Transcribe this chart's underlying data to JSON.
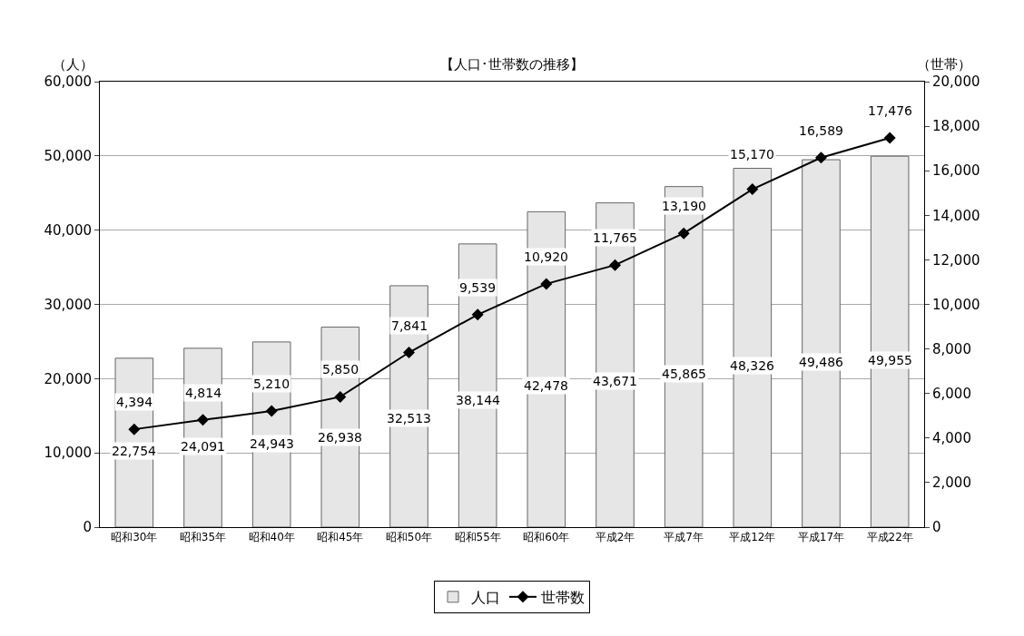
{
  "chart_data": {
    "type": "bar",
    "title": "【人口･世帯数の推移】",
    "ylabel": "（人）",
    "y2label": "（世帯）",
    "categories": [
      "昭和30年",
      "昭和35年",
      "昭和40年",
      "昭和45年",
      "昭和50年",
      "昭和55年",
      "昭和60年",
      "平成2年",
      "平成7年",
      "平成12年",
      "平成17年",
      "平成22年"
    ],
    "series": [
      {
        "name": "人口",
        "color": "#e6e6e6",
        "values": [
          22754,
          24091,
          24943,
          26938,
          32513,
          38144,
          42478,
          43671,
          45865,
          48326,
          49486,
          49955
        ],
        "value_labels": [
          "22,754",
          "24,091",
          "24,943",
          "26,938",
          "32,513",
          "38,144",
          "42,478",
          "43,671",
          "45,865",
          "48,326",
          "49,486",
          "49,955"
        ]
      },
      {
        "name": "世帯数",
        "type": "line",
        "axis": "y2",
        "color": "#000000",
        "marker": "diamond",
        "values": [
          4394,
          4814,
          5210,
          5850,
          7841,
          9539,
          10920,
          11765,
          13190,
          15170,
          16589,
          17476
        ],
        "value_labels": [
          "4,394",
          "4,814",
          "5,210",
          "5,850",
          "7,841",
          "9,539",
          "10,920",
          "11,765",
          "13,190",
          "15,170",
          "16,589",
          "17,476"
        ]
      }
    ],
    "ylim": [
      0,
      60000
    ],
    "yticks": [
      0,
      {
        "value": 10000,
        "label": "10,000"
      },
      {
        "value": 20000,
        "label": "20,000"
      },
      {
        "value": 30000,
        "label": "30,000"
      },
      {
        "value": 40000,
        "label": "40,000"
      },
      {
        "value": 50000,
        "label": "50,000"
      },
      {
        "value": 60000,
        "label": "60,000"
      }
    ],
    "y2lim": [
      0,
      20000
    ],
    "y2ticks": [
      0,
      {
        "value": 2000,
        "label": "2,000"
      },
      {
        "value": 4000,
        "label": "4,000"
      },
      {
        "value": 6000,
        "label": "6,000"
      },
      {
        "value": 8000,
        "label": "8,000"
      },
      {
        "value": 10000,
        "label": "10,000"
      },
      {
        "value": 12000,
        "label": "12,000"
      },
      {
        "value": 14000,
        "label": "14,000"
      },
      {
        "value": 16000,
        "label": "16,000"
      },
      {
        "value": 18000,
        "label": "18,000"
      },
      {
        "value": 20000,
        "label": "20,000"
      }
    ],
    "grid": "y",
    "legend": "bottom"
  }
}
